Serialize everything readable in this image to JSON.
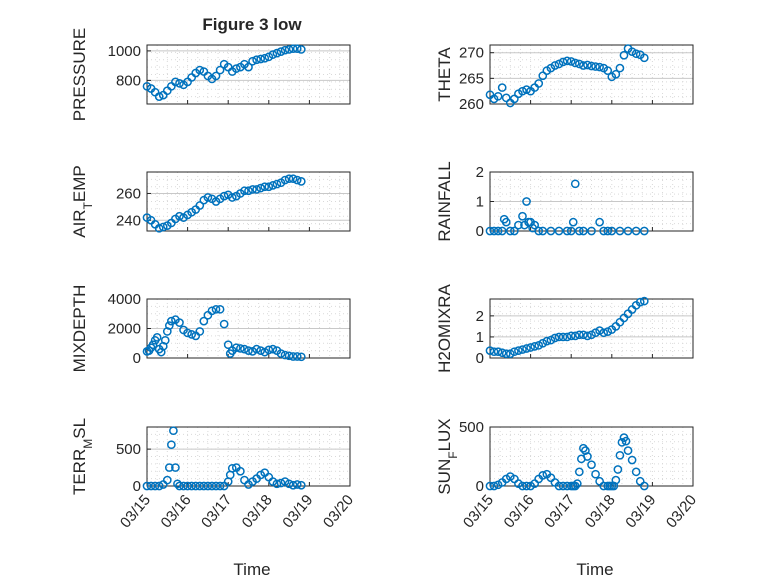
{
  "figure": {
    "title": "Figure 3 low",
    "xlabel": "Time",
    "marker_color": "#0072BD",
    "grid": "dotted minor grid on",
    "x_ticks": [
      "03/15",
      "03/16",
      "03/17",
      "03/18",
      "03/19",
      "03/20"
    ]
  },
  "chart_data": [
    {
      "type": "scatter",
      "ylabel": "PRESSURE",
      "ylim": [
        640,
        1040
      ],
      "yticks": [
        800,
        1000
      ],
      "x_range": [
        "03/15",
        "03/20"
      ],
      "x": [
        0.0,
        0.1,
        0.2,
        0.3,
        0.4,
        0.5,
        0.6,
        0.7,
        0.8,
        0.9,
        1.0,
        1.1,
        1.2,
        1.3,
        1.4,
        1.5,
        1.6,
        1.7,
        1.8,
        1.9,
        2.0,
        2.1,
        2.2,
        2.3,
        2.4,
        2.5,
        2.6,
        2.7,
        2.8,
        2.9,
        3.0,
        3.1,
        3.2,
        3.3,
        3.4,
        3.5,
        3.6,
        3.7,
        3.8
      ],
      "y": [
        760,
        745,
        720,
        690,
        700,
        730,
        760,
        790,
        780,
        770,
        790,
        820,
        850,
        870,
        860,
        830,
        810,
        830,
        870,
        910,
        890,
        860,
        880,
        890,
        910,
        890,
        930,
        940,
        945,
        950,
        960,
        975,
        985,
        995,
        1005,
        1010,
        1015,
        1015,
        1010
      ]
    },
    {
      "type": "scatter",
      "ylabel": "THETA",
      "ylim": [
        260,
        271.5
      ],
      "yticks": [
        260,
        265,
        270
      ],
      "x_range": [
        "03/15",
        "03/20"
      ],
      "x": [
        0.0,
        0.1,
        0.2,
        0.3,
        0.4,
        0.5,
        0.6,
        0.7,
        0.8,
        0.9,
        1.0,
        1.1,
        1.2,
        1.3,
        1.4,
        1.5,
        1.6,
        1.7,
        1.8,
        1.9,
        2.0,
        2.1,
        2.2,
        2.3,
        2.4,
        2.5,
        2.6,
        2.7,
        2.8,
        2.9,
        3.0,
        3.1,
        3.2,
        3.3,
        3.4,
        3.5,
        3.6,
        3.7,
        3.8
      ],
      "y": [
        261.8,
        261.0,
        261.5,
        263.2,
        261.2,
        260.2,
        261.0,
        262.0,
        262.5,
        262.8,
        262.5,
        263.2,
        264.0,
        265.5,
        266.5,
        267.0,
        267.5,
        267.8,
        268.2,
        268.4,
        268.3,
        268.0,
        267.8,
        267.5,
        267.6,
        267.4,
        267.3,
        267.2,
        267.0,
        266.5,
        265.3,
        265.8,
        267.0,
        269.5,
        270.8,
        270.2,
        269.8,
        269.6,
        269.0
      ]
    },
    {
      "type": "scatter",
      "ylabel": "AIR_TEMP",
      "ylim": [
        232,
        276
      ],
      "yticks": [
        240,
        260
      ],
      "x_range": [
        "03/15",
        "03/20"
      ],
      "x": [
        0.0,
        0.1,
        0.2,
        0.3,
        0.4,
        0.5,
        0.6,
        0.7,
        0.8,
        0.9,
        1.0,
        1.1,
        1.2,
        1.3,
        1.4,
        1.5,
        1.6,
        1.7,
        1.8,
        1.9,
        2.0,
        2.1,
        2.2,
        2.3,
        2.4,
        2.5,
        2.6,
        2.7,
        2.8,
        2.9,
        3.0,
        3.1,
        3.2,
        3.3,
        3.4,
        3.5,
        3.6,
        3.7,
        3.8
      ],
      "y": [
        242,
        240,
        237,
        234,
        235,
        236,
        238,
        241,
        243,
        242,
        244,
        246,
        248,
        251,
        255,
        257,
        256,
        254,
        256,
        258,
        259,
        257,
        258,
        260,
        262,
        262,
        263,
        263,
        264,
        265,
        265,
        266,
        267,
        268,
        270,
        271,
        271,
        270,
        269
      ]
    },
    {
      "type": "scatter",
      "ylabel": "RAINFALL",
      "ylim": [
        0,
        2
      ],
      "yticks": [
        0,
        1,
        2
      ],
      "x_range": [
        "03/15",
        "03/20"
      ],
      "x": [
        0.0,
        0.1,
        0.2,
        0.3,
        0.35,
        0.4,
        0.5,
        0.6,
        0.7,
        0.8,
        0.85,
        0.9,
        0.95,
        1.0,
        1.05,
        1.1,
        1.2,
        1.3,
        1.5,
        1.7,
        1.9,
        2.0,
        2.05,
        2.1,
        2.2,
        2.3,
        2.5,
        2.7,
        2.8,
        2.9,
        3.0,
        3.2,
        3.4,
        3.6,
        3.8
      ],
      "y": [
        0,
        0,
        0,
        0,
        0.4,
        0.3,
        0,
        0,
        0.2,
        0.5,
        0.2,
        1.0,
        0.3,
        0.3,
        0.1,
        0.2,
        0,
        0,
        0,
        0,
        0,
        0,
        0.3,
        1.6,
        0,
        0,
        0,
        0.3,
        0,
        0,
        0,
        0,
        0,
        0,
        0
      ]
    },
    {
      "type": "scatter",
      "ylabel": "MIXDEPTH",
      "ylim": [
        0,
        4000
      ],
      "yticks": [
        0,
        2000,
        4000
      ],
      "x_range": [
        "03/15",
        "03/20"
      ],
      "x": [
        0.0,
        0.05,
        0.1,
        0.15,
        0.2,
        0.25,
        0.3,
        0.35,
        0.4,
        0.45,
        0.5,
        0.55,
        0.6,
        0.7,
        0.8,
        0.9,
        1.0,
        1.1,
        1.2,
        1.3,
        1.4,
        1.5,
        1.6,
        1.7,
        1.8,
        1.9,
        2.0,
        2.05,
        2.1,
        2.2,
        2.3,
        2.4,
        2.5,
        2.6,
        2.7,
        2.8,
        2.9,
        3.0,
        3.1,
        3.2,
        3.3,
        3.4,
        3.5,
        3.6,
        3.7,
        3.8
      ],
      "y": [
        450,
        500,
        700,
        900,
        1200,
        1400,
        600,
        400,
        800,
        1200,
        1800,
        2200,
        2500,
        2600,
        2400,
        1900,
        1700,
        1600,
        1500,
        1800,
        2500,
        2900,
        3200,
        3300,
        3300,
        2300,
        900,
        300,
        500,
        700,
        650,
        600,
        500,
        450,
        600,
        500,
        400,
        550,
        600,
        500,
        300,
        200,
        150,
        100,
        100,
        80
      ]
    },
    {
      "type": "scatter",
      "ylabel": "H2OMIXRA",
      "ylim": [
        0,
        2.8
      ],
      "yticks": [
        0,
        1,
        2
      ],
      "x_range": [
        "03/15",
        "03/20"
      ],
      "x": [
        0.0,
        0.1,
        0.2,
        0.3,
        0.4,
        0.5,
        0.6,
        0.7,
        0.8,
        0.9,
        1.0,
        1.1,
        1.2,
        1.3,
        1.4,
        1.5,
        1.6,
        1.7,
        1.8,
        1.9,
        2.0,
        2.1,
        2.2,
        2.3,
        2.4,
        2.5,
        2.6,
        2.7,
        2.8,
        2.9,
        3.0,
        3.1,
        3.2,
        3.3,
        3.4,
        3.5,
        3.6,
        3.7,
        3.8
      ],
      "y": [
        0.35,
        0.3,
        0.3,
        0.25,
        0.2,
        0.2,
        0.3,
        0.35,
        0.4,
        0.45,
        0.5,
        0.55,
        0.6,
        0.7,
        0.8,
        0.85,
        0.95,
        1.0,
        1.0,
        1.0,
        1.05,
        1.05,
        1.1,
        1.1,
        1.05,
        1.1,
        1.2,
        1.3,
        1.2,
        1.25,
        1.35,
        1.5,
        1.7,
        1.9,
        2.1,
        2.3,
        2.5,
        2.65,
        2.7
      ]
    },
    {
      "type": "scatter",
      "ylabel": "TERR_MSL",
      "ylim": [
        0,
        800
      ],
      "yticks": [
        0,
        500
      ],
      "x_range": [
        "03/15",
        "03/20"
      ],
      "x": [
        0.0,
        0.1,
        0.2,
        0.3,
        0.4,
        0.5,
        0.55,
        0.6,
        0.65,
        0.7,
        0.75,
        0.8,
        0.9,
        1.0,
        1.1,
        1.2,
        1.3,
        1.4,
        1.5,
        1.6,
        1.7,
        1.8,
        1.9,
        2.0,
        2.05,
        2.1,
        2.2,
        2.3,
        2.4,
        2.5,
        2.6,
        2.7,
        2.8,
        2.9,
        3.0,
        3.1,
        3.2,
        3.3,
        3.4,
        3.5,
        3.6,
        3.7,
        3.8
      ],
      "y": [
        0,
        0,
        0,
        0,
        20,
        80,
        250,
        560,
        750,
        250,
        30,
        0,
        0,
        0,
        0,
        0,
        0,
        0,
        0,
        0,
        0,
        0,
        0,
        60,
        150,
        240,
        250,
        200,
        80,
        20,
        60,
        100,
        150,
        180,
        120,
        60,
        30,
        40,
        60,
        30,
        10,
        20,
        10
      ]
    },
    {
      "type": "scatter",
      "ylabel": "SUN_FLUX",
      "ylim": [
        0,
        500
      ],
      "yticks": [
        0,
        500
      ],
      "x_range": [
        "03/15",
        "03/20"
      ],
      "x": [
        0.0,
        0.1,
        0.2,
        0.3,
        0.4,
        0.5,
        0.6,
        0.7,
        0.8,
        0.9,
        1.0,
        1.1,
        1.2,
        1.3,
        1.4,
        1.5,
        1.6,
        1.7,
        1.8,
        1.9,
        2.0,
        2.05,
        2.1,
        2.15,
        2.2,
        2.25,
        2.3,
        2.35,
        2.4,
        2.5,
        2.6,
        2.7,
        2.8,
        2.9,
        2.95,
        3.0,
        3.05,
        3.1,
        3.15,
        3.2,
        3.25,
        3.3,
        3.35,
        3.4,
        3.5,
        3.6,
        3.7,
        3.8
      ],
      "y": [
        0,
        0,
        10,
        30,
        60,
        80,
        60,
        20,
        0,
        0,
        0,
        20,
        60,
        90,
        100,
        70,
        30,
        0,
        0,
        0,
        0,
        0,
        0,
        20,
        120,
        230,
        320,
        300,
        250,
        180,
        100,
        40,
        0,
        0,
        0,
        0,
        0,
        50,
        140,
        260,
        370,
        410,
        380,
        300,
        220,
        120,
        40,
        0
      ]
    }
  ]
}
